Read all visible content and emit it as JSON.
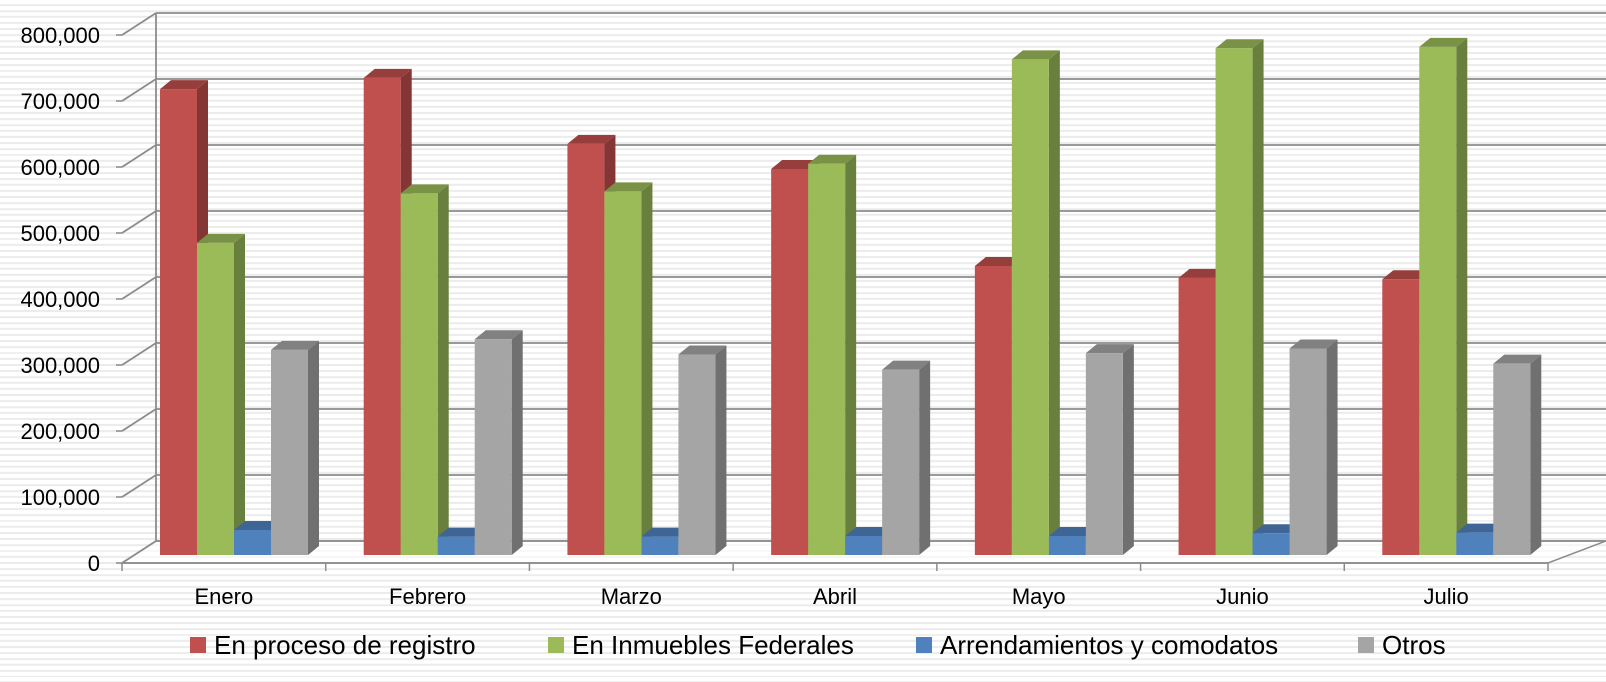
{
  "chart_data": {
    "type": "bar",
    "style": "3d-clustered-column",
    "categories": [
      "Enero",
      "Febrero",
      "Marzo",
      "Abril",
      "Mayo",
      "Junio",
      "Julio"
    ],
    "series": [
      {
        "name": "En proceso de registro",
        "color": "#C0504D",
        "values": [
          718000,
          735000,
          635000,
          597000,
          450000,
          432000,
          430000
        ]
      },
      {
        "name": "En Inmuebles Federales",
        "color": "#9BBB59",
        "values": [
          485000,
          560000,
          563000,
          605000,
          763000,
          780000,
          782000
        ]
      },
      {
        "name": "Arrendamientos y comodatos",
        "color": "#4F81BD",
        "values": [
          50000,
          40000,
          40000,
          41000,
          41000,
          45000,
          46000
        ]
      },
      {
        "name": "Otros",
        "color": "#A5A5A5",
        "values": [
          323000,
          339000,
          316000,
          293000,
          318000,
          325000,
          302000
        ]
      }
    ],
    "yticks": [
      "0",
      "100,000",
      "200,000",
      "300,000",
      "400,000",
      "500,000",
      "600,000",
      "700,000",
      "800,000"
    ],
    "ylim": [
      0,
      800000
    ],
    "grid": true,
    "legend_position": "bottom"
  }
}
